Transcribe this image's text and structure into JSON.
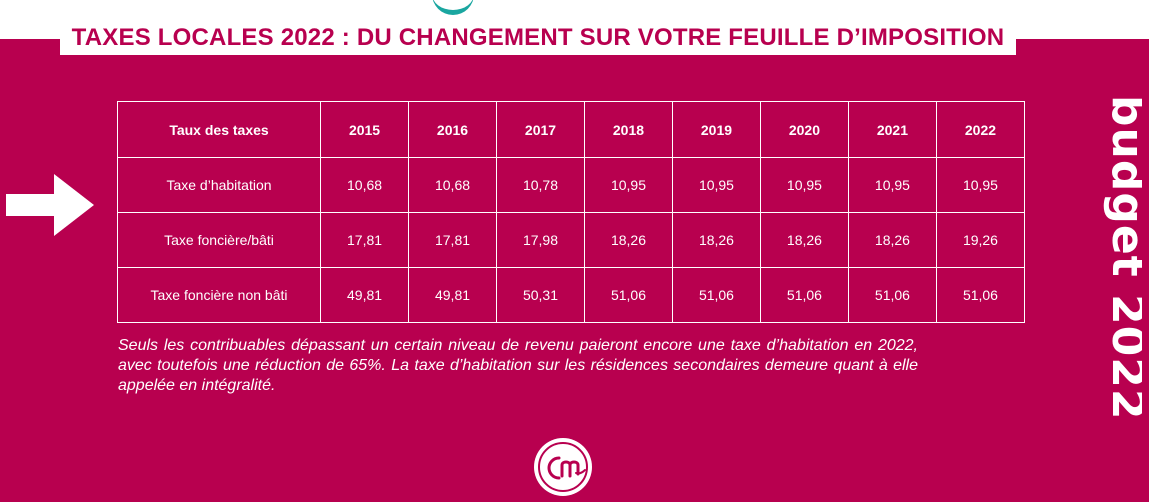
{
  "title": "TAXES LOCALES 2022 : DU CHANGEMENT SUR VOTRE FEUILLE D’IMPOSITION",
  "side_text": "budget 2022",
  "table": {
    "header": [
      "Taux des taxes",
      "2015",
      "2016",
      "2017",
      "2018",
      "2019",
      "2020",
      "2021",
      "2022"
    ],
    "rows": [
      [
        "Taxe d’habitation",
        "10,68",
        "10,68",
        "10,78",
        "10,95",
        "10,95",
        "10,95",
        "10,95",
        "10,95"
      ],
      [
        "Taxe foncière/bâti",
        "17,81",
        "17,81",
        "17,98",
        "18,26",
        "18,26",
        "18,26",
        "18,26",
        "19,26"
      ],
      [
        "Taxe foncière non bâti",
        "49,81",
        "49,81",
        "50,31",
        "51,06",
        "51,06",
        "51,06",
        "51,06",
        "51,06"
      ]
    ]
  },
  "note": "Seuls les contribuables dépassant un certain niveau de revenu paieront encore une taxe d’habitation en 2022, avec toutefois une réduction de 65%. La taxe d’habitation sur les résidences secondaires demeure quant à elle appelée en intégralité.",
  "colors": {
    "background": "#b8004f",
    "text": "#ffffff",
    "accent_teal": "#1aa6a0"
  },
  "icons": {
    "arrow": "arrow-right-icon",
    "logo": "cm-logo-icon"
  }
}
